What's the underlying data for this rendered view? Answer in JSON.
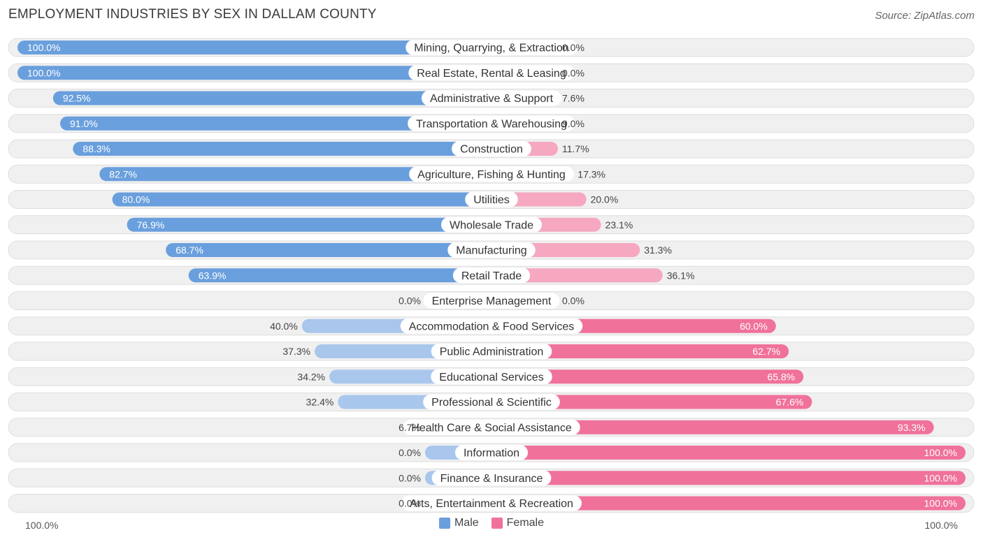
{
  "title": "EMPLOYMENT INDUSTRIES BY SEX IN DALLAM COUNTY",
  "source": "Source: ZipAtlas.com",
  "legend": {
    "male": "Male",
    "female": "Female"
  },
  "axis": {
    "left_label": "100.0%",
    "right_label": "100.0%"
  },
  "colors": {
    "male_strong": "#6a9fdd",
    "male_light": "#a9c7ec",
    "female_strong": "#f0719a",
    "female_light": "#f5a8c0",
    "row_bg": "#f0f0f0",
    "row_border": "#dedede"
  },
  "chart_data": {
    "type": "bar",
    "orientation": "horizontal-diverging",
    "title": "EMPLOYMENT INDUSTRIES BY SEX IN DALLAM COUNTY",
    "xlim": [
      -100,
      100
    ],
    "series": [
      {
        "name": "Male",
        "values": [
          100.0,
          100.0,
          92.5,
          91.0,
          88.3,
          82.7,
          80.0,
          76.9,
          68.7,
          63.9,
          0.0,
          40.0,
          37.3,
          34.2,
          32.4,
          6.7,
          0.0,
          0.0,
          0.0
        ]
      },
      {
        "name": "Female",
        "values": [
          0.0,
          0.0,
          7.6,
          9.0,
          11.7,
          17.3,
          20.0,
          23.1,
          31.3,
          36.1,
          0.0,
          60.0,
          62.7,
          65.8,
          67.6,
          93.3,
          100.0,
          100.0,
          100.0
        ]
      }
    ],
    "categories": [
      "Mining, Quarrying, & Extraction",
      "Real Estate, Rental & Leasing",
      "Administrative & Support",
      "Transportation & Warehousing",
      "Construction",
      "Agriculture, Fishing & Hunting",
      "Utilities",
      "Wholesale Trade",
      "Manufacturing",
      "Retail Trade",
      "Enterprise Management",
      "Accommodation & Food Services",
      "Public Administration",
      "Educational Services",
      "Professional & Scientific",
      "Health Care & Social Assistance",
      "Information",
      "Finance & Insurance",
      "Arts, Entertainment & Recreation"
    ],
    "male_labels": [
      "100.0%",
      "100.0%",
      "92.5%",
      "91.0%",
      "88.3%",
      "82.7%",
      "80.0%",
      "76.9%",
      "68.7%",
      "63.9%",
      "0.0%",
      "40.0%",
      "37.3%",
      "34.2%",
      "32.4%",
      "6.7%",
      "0.0%",
      "0.0%",
      "0.0%"
    ],
    "female_labels": [
      "0.0%",
      "0.0%",
      "7.6%",
      "9.0%",
      "11.7%",
      "17.3%",
      "20.0%",
      "23.1%",
      "31.3%",
      "36.1%",
      "0.0%",
      "60.0%",
      "62.7%",
      "65.8%",
      "67.6%",
      "93.3%",
      "100.0%",
      "100.0%",
      "100.0%"
    ]
  }
}
